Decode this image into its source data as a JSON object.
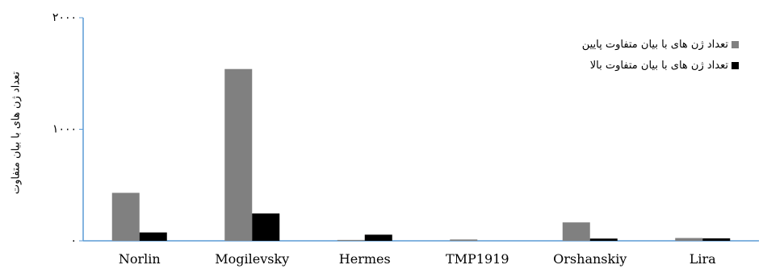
{
  "chart_data": {
    "type": "bar",
    "categories": [
      "Norlin",
      "Mogilevsky",
      "Hermes",
      "TMP1919",
      "Orshanskiy",
      "Lira"
    ],
    "series": [
      {
        "name": "تعداد ژن های با بیان متفاوت پایین",
        "color": "#808080",
        "values": [
          430,
          1540,
          8,
          12,
          165,
          25
        ]
      },
      {
        "name": "تعداد ژن های با بیان متفاوت بالا",
        "color": "#000000",
        "values": [
          75,
          245,
          55,
          0,
          20,
          22
        ]
      }
    ],
    "yticks": [
      {
        "value": 0,
        "label": "۰"
      },
      {
        "value": 1000,
        "label": "۱۰۰۰"
      },
      {
        "value": 2000,
        "label": "۲۰۰۰"
      }
    ],
    "ylim": [
      0,
      2000
    ],
    "ylabel": "تعداد ژن های با بیان متفاوت",
    "xlabel": "",
    "title": "",
    "grid": false,
    "legend_position": "top-right",
    "axis_color": "#5b9bd5"
  }
}
